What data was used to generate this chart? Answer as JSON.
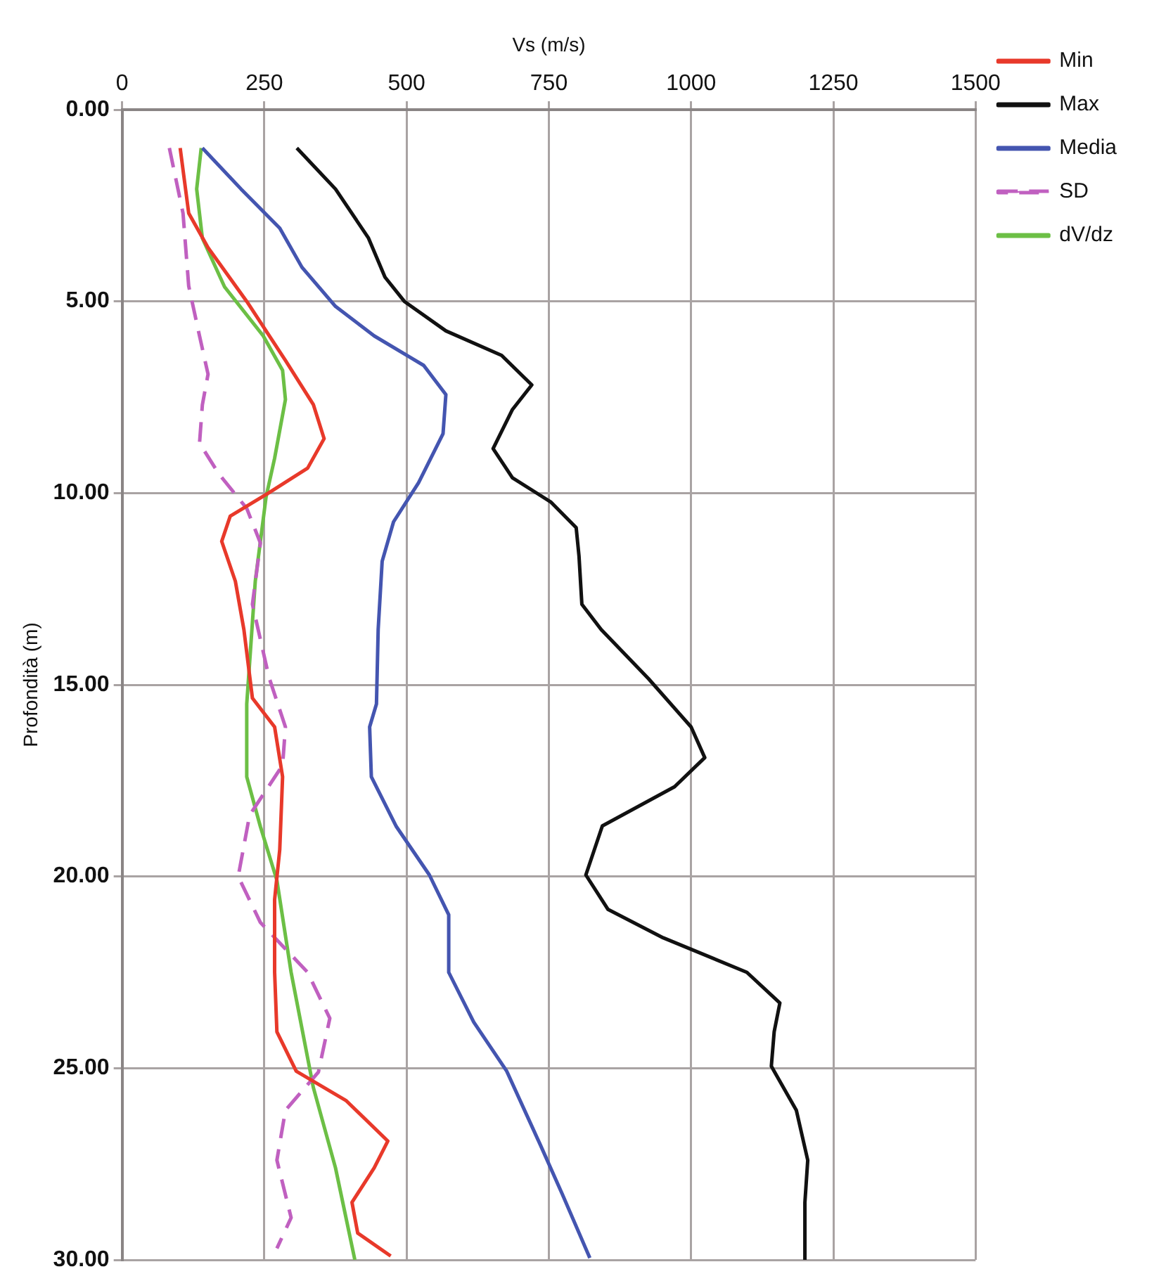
{
  "chart_data": {
    "type": "line",
    "xlabel": "Vs (m/s)",
    "ylabel": "Profondità (m)",
    "xlim": [
      0,
      1500
    ],
    "xticks": [
      0,
      250,
      500,
      750,
      1000,
      1250,
      1500
    ],
    "ylim": [
      30,
      0
    ],
    "yticks": [
      {
        "value": 0,
        "label": "0.00"
      },
      {
        "value": 5,
        "label": "5.00"
      },
      {
        "value": 10,
        "label": "10.00"
      },
      {
        "value": 15,
        "label": "15.00"
      },
      {
        "value": 20,
        "label": "20.00"
      },
      {
        "value": 25,
        "label": "25.00"
      },
      {
        "value": 30,
        "label": "30.00"
      }
    ],
    "grid": true,
    "legend": "top right",
    "marker": "none",
    "series": [
      {
        "name": "Min",
        "color": "#e8392a",
        "x": [
          102,
          117,
          151,
          219,
          287,
          336,
          355,
          326,
          258,
          190,
          175,
          199,
          214,
          229,
          268,
          282,
          277,
          268,
          268,
          272,
          306,
          394,
          467,
          443,
          404,
          414,
          472
        ],
        "values": [
          1.0,
          2.7,
          3.6,
          5.0,
          6.54,
          7.69,
          8.58,
          9.35,
          9.99,
          10.6,
          11.26,
          12.3,
          13.56,
          15.35,
          16.1,
          17.4,
          19.3,
          20.6,
          22.5,
          24.05,
          25.08,
          25.85,
          26.9,
          27.6,
          28.5,
          29.3,
          29.9
        ]
      },
      {
        "name": "Max",
        "color": "#111111",
        "x": [
          307,
          375,
          433,
          462,
          496,
          569,
          667,
          720,
          686,
          652,
          686,
          754,
          798,
          803,
          808,
          842,
          925,
          1000,
          1024,
          971,
          844,
          815,
          854,
          951,
          1098,
          1156,
          1146,
          1141,
          1185,
          1205,
          1200,
          1200
        ],
        "values": [
          1.0,
          2.07,
          3.35,
          4.37,
          5.0,
          5.77,
          6.41,
          7.18,
          7.82,
          8.84,
          9.6,
          10.24,
          10.9,
          11.65,
          12.9,
          13.56,
          14.84,
          16.1,
          16.9,
          17.66,
          18.68,
          19.96,
          20.86,
          21.6,
          22.5,
          23.3,
          24.05,
          24.95,
          26.1,
          27.4,
          28.5,
          30.0
        ]
      },
      {
        "name": "Media",
        "color": "#4455b0",
        "x": [
          141,
          209,
          277,
          316,
          375,
          443,
          530,
          569,
          564,
          521,
          477,
          457,
          450,
          447,
          435,
          438,
          482,
          540,
          574,
          574,
          618,
          676,
          735,
          774,
          822
        ],
        "values": [
          1.0,
          2.07,
          3.09,
          4.11,
          5.13,
          5.9,
          6.67,
          7.43,
          8.45,
          9.73,
          10.75,
          11.78,
          13.56,
          15.5,
          16.1,
          17.4,
          18.7,
          19.96,
          21.0,
          22.5,
          23.8,
          25.08,
          27.0,
          28.3,
          29.95
        ]
      },
      {
        "name": "SD",
        "color": "#c060c0",
        "line_style": "dashed",
        "x": [
          83,
          107,
          117,
          136,
          151,
          141,
          136,
          170,
          219,
          243,
          229,
          258,
          287,
          282,
          224,
          204,
          243,
          326,
          365,
          345,
          287,
          272,
          297,
          272
        ],
        "values": [
          1.0,
          2.7,
          4.6,
          5.9,
          6.9,
          7.7,
          8.7,
          9.5,
          10.4,
          11.3,
          12.9,
          14.8,
          16.1,
          17.1,
          18.4,
          20.0,
          21.2,
          22.5,
          23.7,
          25.1,
          26.1,
          27.4,
          28.9,
          29.7
        ]
      },
      {
        "name": "dV/dz",
        "color": "#6cbf45",
        "x": [
          139,
          131,
          141,
          180,
          248,
          282,
          287,
          268,
          253,
          234,
          219,
          219,
          243,
          272,
          297,
          336,
          375,
          409
        ],
        "values": [
          1.0,
          2.07,
          3.35,
          4.62,
          5.9,
          6.8,
          7.56,
          9.09,
          10.1,
          12.3,
          15.5,
          17.4,
          18.7,
          20.1,
          22.5,
          25.5,
          27.6,
          30.0
        ]
      }
    ]
  }
}
